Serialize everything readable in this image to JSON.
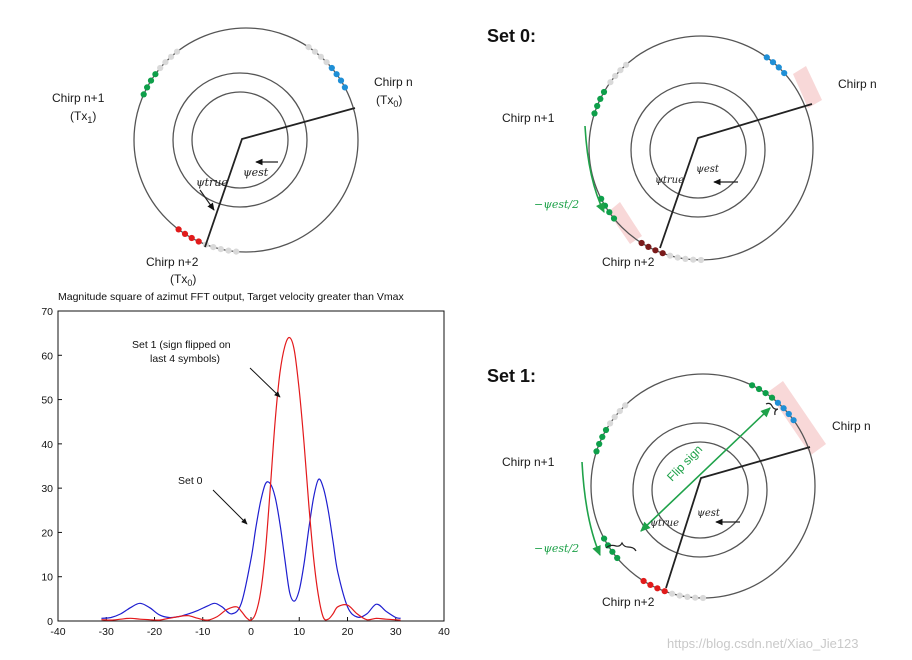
{
  "diagram_tl": {
    "chirp_n": "Chirp n",
    "chirp_n_tx": "(Tx",
    "chirp_n_tx_sub": "0",
    "chirp_n1": "Chirp n+1",
    "chirp_n1_tx": "(Tx",
    "chirp_n1_tx_sub": "1",
    "chirp_n2": "Chirp n+2",
    "chirp_n2_tx": "(Tx",
    "chirp_n2_tx_sub": "0",
    "psi_true": "ψtrue",
    "psi_est": "ψest"
  },
  "set0": {
    "title": "Set 0:",
    "chirp_n": "Chirp n",
    "chirp_n1": "Chirp n+1",
    "chirp_n2": "Chirp n+2",
    "neg_half": "−ψest/2",
    "psi_true": "ψtrue",
    "psi_est": "ψest"
  },
  "set1": {
    "title": "Set 1:",
    "chirp_n": "Chirp n",
    "chirp_n1": "Chirp n+1",
    "chirp_n2": "Chirp n+2",
    "neg_half": "−ψest/2",
    "flip": "Flip sign",
    "psi_true": "ψtrue",
    "psi_est": "ψest"
  },
  "colors": {
    "green": "#0e9f4a",
    "blue": "#1f8fd6",
    "red": "#e11b1b",
    "darkred": "#7a1b1b",
    "grey": "#d9d9d9",
    "series_red": "#e31a1c",
    "series_blue": "#1f1fd0",
    "pink_band": "#f7d4d4",
    "arrow_green": "#1fa24a"
  },
  "watermark": "https://blog.csdn.net/Xiao_Jie123",
  "chart_data": {
    "type": "line",
    "title": "Magnitude square of azimut FFT output,  Target velocity greater than Vmax",
    "xlabel": "",
    "ylabel": "",
    "xlim": [
      -40,
      40
    ],
    "ylim": [
      0,
      70
    ],
    "xticks": [
      -40,
      -30,
      -20,
      -10,
      0,
      10,
      20,
      30,
      40
    ],
    "yticks": [
      0,
      10,
      20,
      30,
      40,
      50,
      60,
      70
    ],
    "series": [
      {
        "name": "Set 0",
        "color": "#1f1fd0",
        "x": [
          -31,
          -29,
          -27,
          -25,
          -23,
          -21,
          -19,
          -17,
          -15,
          -13,
          -11,
          -9,
          -7.5,
          -6,
          -4,
          -2,
          0,
          1,
          2,
          3,
          4,
          5,
          6,
          7,
          8,
          9,
          10,
          11,
          12,
          13,
          14,
          15,
          16,
          17,
          18,
          20,
          22,
          24,
          26,
          28,
          30,
          31
        ],
        "y": [
          0.6,
          0.8,
          1.6,
          3.0,
          4.0,
          3.0,
          1.4,
          0.8,
          1.0,
          1.6,
          2.4,
          3.4,
          4.0,
          3.2,
          1.6,
          4.0,
          14,
          21,
          27,
          31,
          31,
          28,
          22,
          14,
          6.5,
          4.5,
          7,
          13,
          21,
          28,
          32,
          30,
          25,
          18,
          11,
          3.2,
          0.9,
          1.6,
          3.8,
          2.2,
          0.8,
          0.6
        ]
      },
      {
        "name": "Set 1 (sign flipped on last 4 symbols)",
        "color": "#e31a1c",
        "x": [
          -31,
          -29,
          -27,
          -25,
          -23,
          -21,
          -19,
          -17,
          -15,
          -13,
          -11,
          -9,
          -7,
          -5,
          -3,
          -2,
          -1,
          0,
          1,
          2,
          3,
          4,
          5,
          6,
          7,
          8,
          9,
          10,
          11,
          12,
          13,
          14,
          15,
          16,
          17,
          18,
          20,
          22,
          24,
          26,
          28,
          31
        ],
        "y": [
          0.3,
          0.2,
          0.4,
          0.6,
          0.4,
          0.3,
          0.2,
          0.6,
          1.0,
          1.2,
          0.6,
          0.2,
          1.0,
          2.6,
          3.2,
          2.2,
          0.8,
          0.2,
          1.8,
          6.5,
          16,
          30,
          45,
          56,
          62,
          64,
          61,
          52,
          40,
          26,
          14,
          5.5,
          0.8,
          0.4,
          1.6,
          3.2,
          3.6,
          1.6,
          0.3,
          0.6,
          0.4,
          0.2
        ]
      }
    ],
    "annotations": [
      {
        "text": "Set 1 (sign flipped on",
        "text2": "last 4 symbols)",
        "points_to": [
          5,
          52
        ]
      },
      {
        "text": "Set 0",
        "points_to": [
          -2,
          22
        ]
      }
    ]
  }
}
